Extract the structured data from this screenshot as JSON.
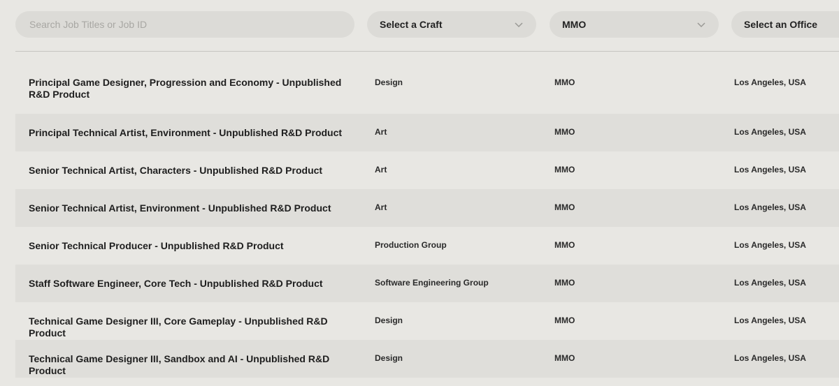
{
  "filters": {
    "search_placeholder": "Search Job Titles or Job ID",
    "craft_label": "Select a Craft",
    "team_label": "MMO",
    "office_label": "Select an Office"
  },
  "jobs": [
    {
      "title": "Principal Game Designer, Progression and Economy - Unpublished R&D Product",
      "craft": "Design",
      "team": "MMO",
      "office": "Los Angeles, USA"
    },
    {
      "title": "Principal Technical Artist, Environment - Unpublished R&D Product",
      "craft": "Art",
      "team": "MMO",
      "office": "Los Angeles, USA"
    },
    {
      "title": "Senior Technical Artist, Characters - Unpublished R&D Product",
      "craft": "Art",
      "team": "MMO",
      "office": "Los Angeles, USA"
    },
    {
      "title": "Senior Technical Artist, Environment - Unpublished R&D Product",
      "craft": "Art",
      "team": "MMO",
      "office": "Los Angeles, USA"
    },
    {
      "title": "Senior Technical Producer - Unpublished R&D Product",
      "craft": "Production Group",
      "team": "MMO",
      "office": "Los Angeles, USA"
    },
    {
      "title": "Staff Software Engineer, Core Tech - Unpublished R&D Product",
      "craft": "Software Engineering Group",
      "team": "MMO",
      "office": "Los Angeles, USA"
    },
    {
      "title": "Technical Game Designer III, Core Gameplay - Unpublished R&D Product",
      "craft": "Design",
      "team": "MMO",
      "office": "Los Angeles, USA"
    },
    {
      "title": "Technical Game Designer III, Sandbox and AI - Unpublished R&D Product",
      "craft": "Design",
      "team": "MMO",
      "office": "Los Angeles, USA"
    }
  ]
}
